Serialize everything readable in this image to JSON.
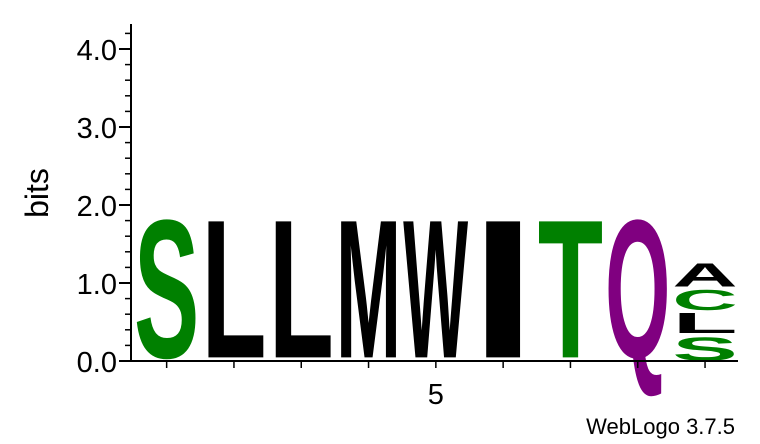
{
  "chart_data": {
    "type": "sequence-logo",
    "ylabel": "bits",
    "ylim": [
      0,
      4.3
    ],
    "yticks": [
      {
        "value": 0,
        "label": "0.0"
      },
      {
        "value": 1,
        "label": "1.0"
      },
      {
        "value": 2,
        "label": "2.0"
      },
      {
        "value": 3,
        "label": "3.0"
      },
      {
        "value": 4,
        "label": "4.0"
      }
    ],
    "xtick_labels": [
      {
        "position": 5,
        "label": "5"
      }
    ],
    "credit": "WebLogo 3.7.5",
    "positions": [
      {
        "position": 1,
        "stack": [
          {
            "letter": "S",
            "bits": 2.1,
            "color": "#008000"
          }
        ]
      },
      {
        "position": 2,
        "stack": [
          {
            "letter": "L",
            "bits": 2.1,
            "color": "#000000"
          }
        ]
      },
      {
        "position": 3,
        "stack": [
          {
            "letter": "L",
            "bits": 2.1,
            "color": "#000000"
          }
        ]
      },
      {
        "position": 4,
        "stack": [
          {
            "letter": "M",
            "bits": 2.1,
            "color": "#000000"
          }
        ]
      },
      {
        "position": 5,
        "stack": [
          {
            "letter": "W",
            "bits": 2.1,
            "color": "#000000"
          }
        ]
      },
      {
        "position": 6,
        "stack": [
          {
            "letter": "I",
            "bits": 2.1,
            "color": "#000000"
          }
        ]
      },
      {
        "position": 7,
        "stack": [
          {
            "letter": "T",
            "bits": 2.1,
            "color": "#008000"
          }
        ]
      },
      {
        "position": 8,
        "stack": [
          {
            "letter": "Q",
            "bits": 2.1,
            "color": "#800080"
          }
        ]
      },
      {
        "position": 9,
        "stack": [
          {
            "letter": "S",
            "bits": 0.35,
            "color": "#008000"
          },
          {
            "letter": "L",
            "bits": 0.3,
            "color": "#000000"
          },
          {
            "letter": "C",
            "bits": 0.3,
            "color": "#008000"
          },
          {
            "letter": "A",
            "bits": 0.35,
            "color": "#000000"
          }
        ]
      }
    ]
  }
}
